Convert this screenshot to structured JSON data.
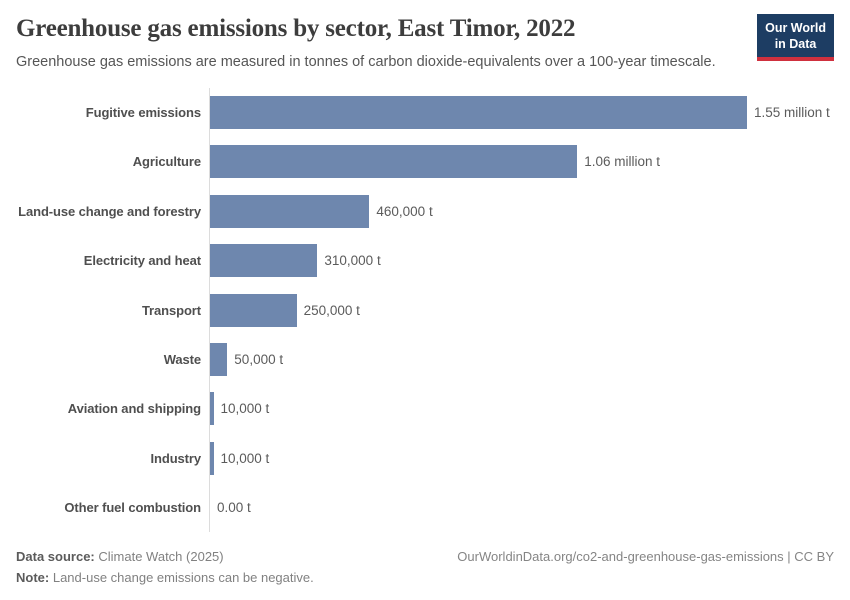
{
  "header": {
    "title": "Greenhouse gas emissions by sector, East Timor, 2022",
    "subtitle": "Greenhouse gas emissions are measured in tonnes of carbon dioxide-equivalents over a 100-year timescale.",
    "logo_line1": "Our World",
    "logo_line2": "in Data"
  },
  "chart_data": {
    "type": "bar",
    "orientation": "horizontal",
    "title": "Greenhouse gas emissions by sector, East Timor, 2022",
    "subtitle": "Greenhouse gas emissions are measured in tonnes of carbon dioxide-equivalents over a 100-year timescale.",
    "categories": [
      "Fugitive emissions",
      "Agriculture",
      "Land-use change and forestry",
      "Electricity and heat",
      "Transport",
      "Waste",
      "Aviation and shipping",
      "Industry",
      "Other fuel combustion"
    ],
    "values": [
      1550000,
      1060000,
      460000,
      310000,
      250000,
      50000,
      10000,
      10000,
      0
    ],
    "value_labels": [
      "1.55 million t",
      "1.06 million t",
      "460,000 t",
      "310,000 t",
      "250,000 t",
      "50,000 t",
      "10,000 t",
      "10,000 t",
      "0.00 t"
    ],
    "unit": "tonnes of CO2-equivalents",
    "xlabel": "",
    "ylabel": "",
    "xlim": [
      0,
      1550000
    ],
    "grid": false,
    "legend": false,
    "bar_color": "#6e87ae",
    "axis_line_color": "#dcdcdc"
  },
  "footer": {
    "data_source_label": "Data source:",
    "data_source_value": "Climate Watch (2025)",
    "note_label": "Note:",
    "note_value": "Land-use change emissions can be negative.",
    "credit": "OurWorldinData.org/co2-and-greenhouse-gas-emissions | CC BY"
  }
}
